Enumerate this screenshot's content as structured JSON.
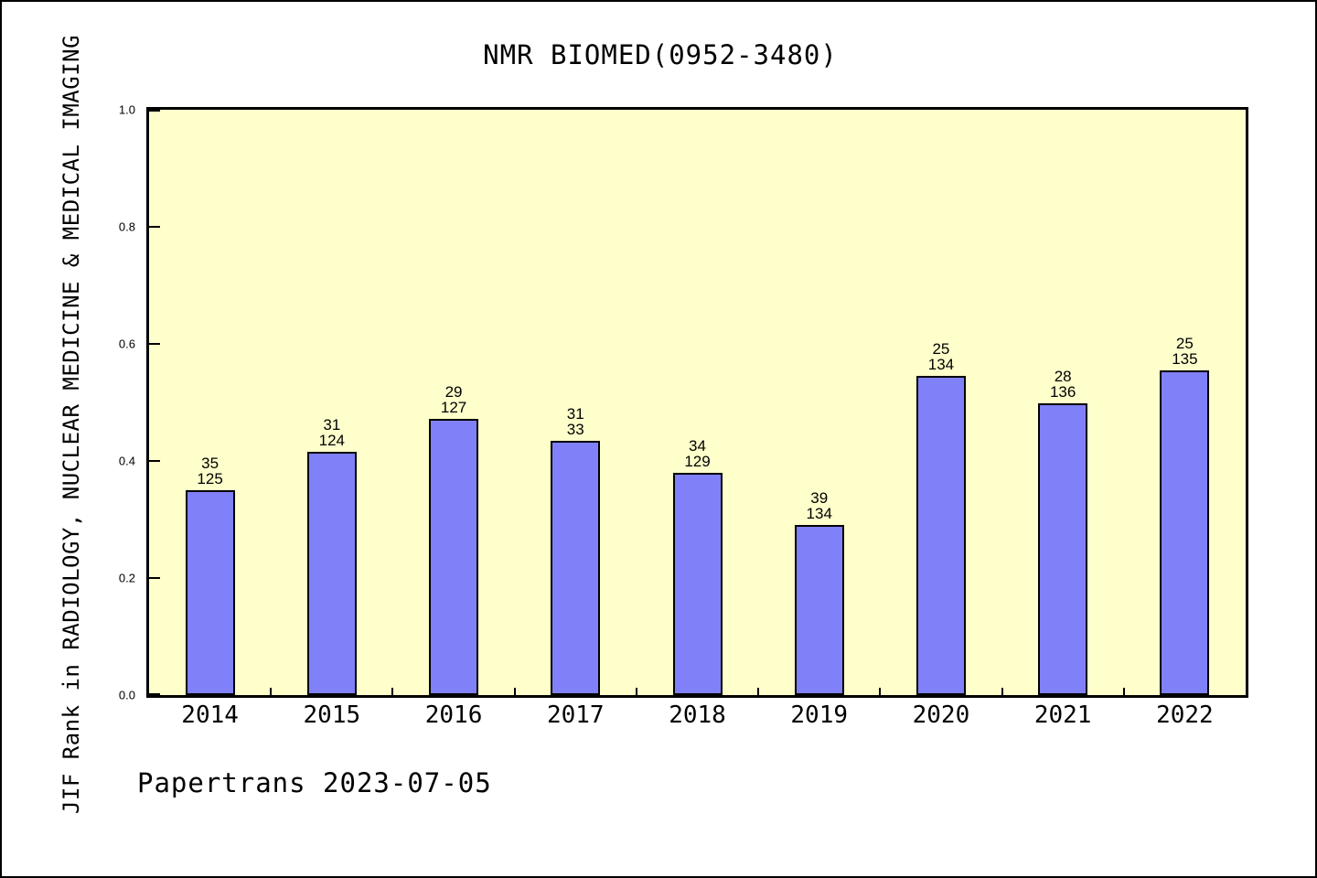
{
  "chart_data": {
    "type": "bar",
    "title": "NMR BIOMED(0952-3480)",
    "ylabel": "JIF Rank in RADIOLOGY, NUCLEAR MEDICINE & MEDICAL IMAGING",
    "xlabel": "",
    "footer": "Papertrans 2023-07-05",
    "categories": [
      "2014",
      "2015",
      "2016",
      "2017",
      "2018",
      "2019",
      "2020",
      "2021",
      "2022"
    ],
    "values": [
      0.35,
      0.415,
      0.472,
      0.435,
      0.38,
      0.29,
      0.545,
      0.499,
      0.554
    ],
    "bar_labels": [
      [
        "35",
        "125"
      ],
      [
        "31",
        "124"
      ],
      [
        "29",
        "127"
      ],
      [
        "31",
        "33"
      ],
      [
        "34",
        "129"
      ],
      [
        "39",
        "134"
      ],
      [
        "25",
        "134"
      ],
      [
        "28",
        "136"
      ],
      [
        "25",
        "135"
      ]
    ],
    "ylim": [
      0.0,
      1.0
    ],
    "ytick_labels": [
      "1.0",
      "0.8",
      "0.6",
      "0.4",
      "0.2",
      "0.0"
    ],
    "grid": false,
    "legend": "none",
    "colors": {
      "bar_fill": "#8080f8",
      "bar_border": "#000000",
      "plot_background": "#ffffcc",
      "page_background": "#ffffff",
      "text": "#000000"
    }
  }
}
